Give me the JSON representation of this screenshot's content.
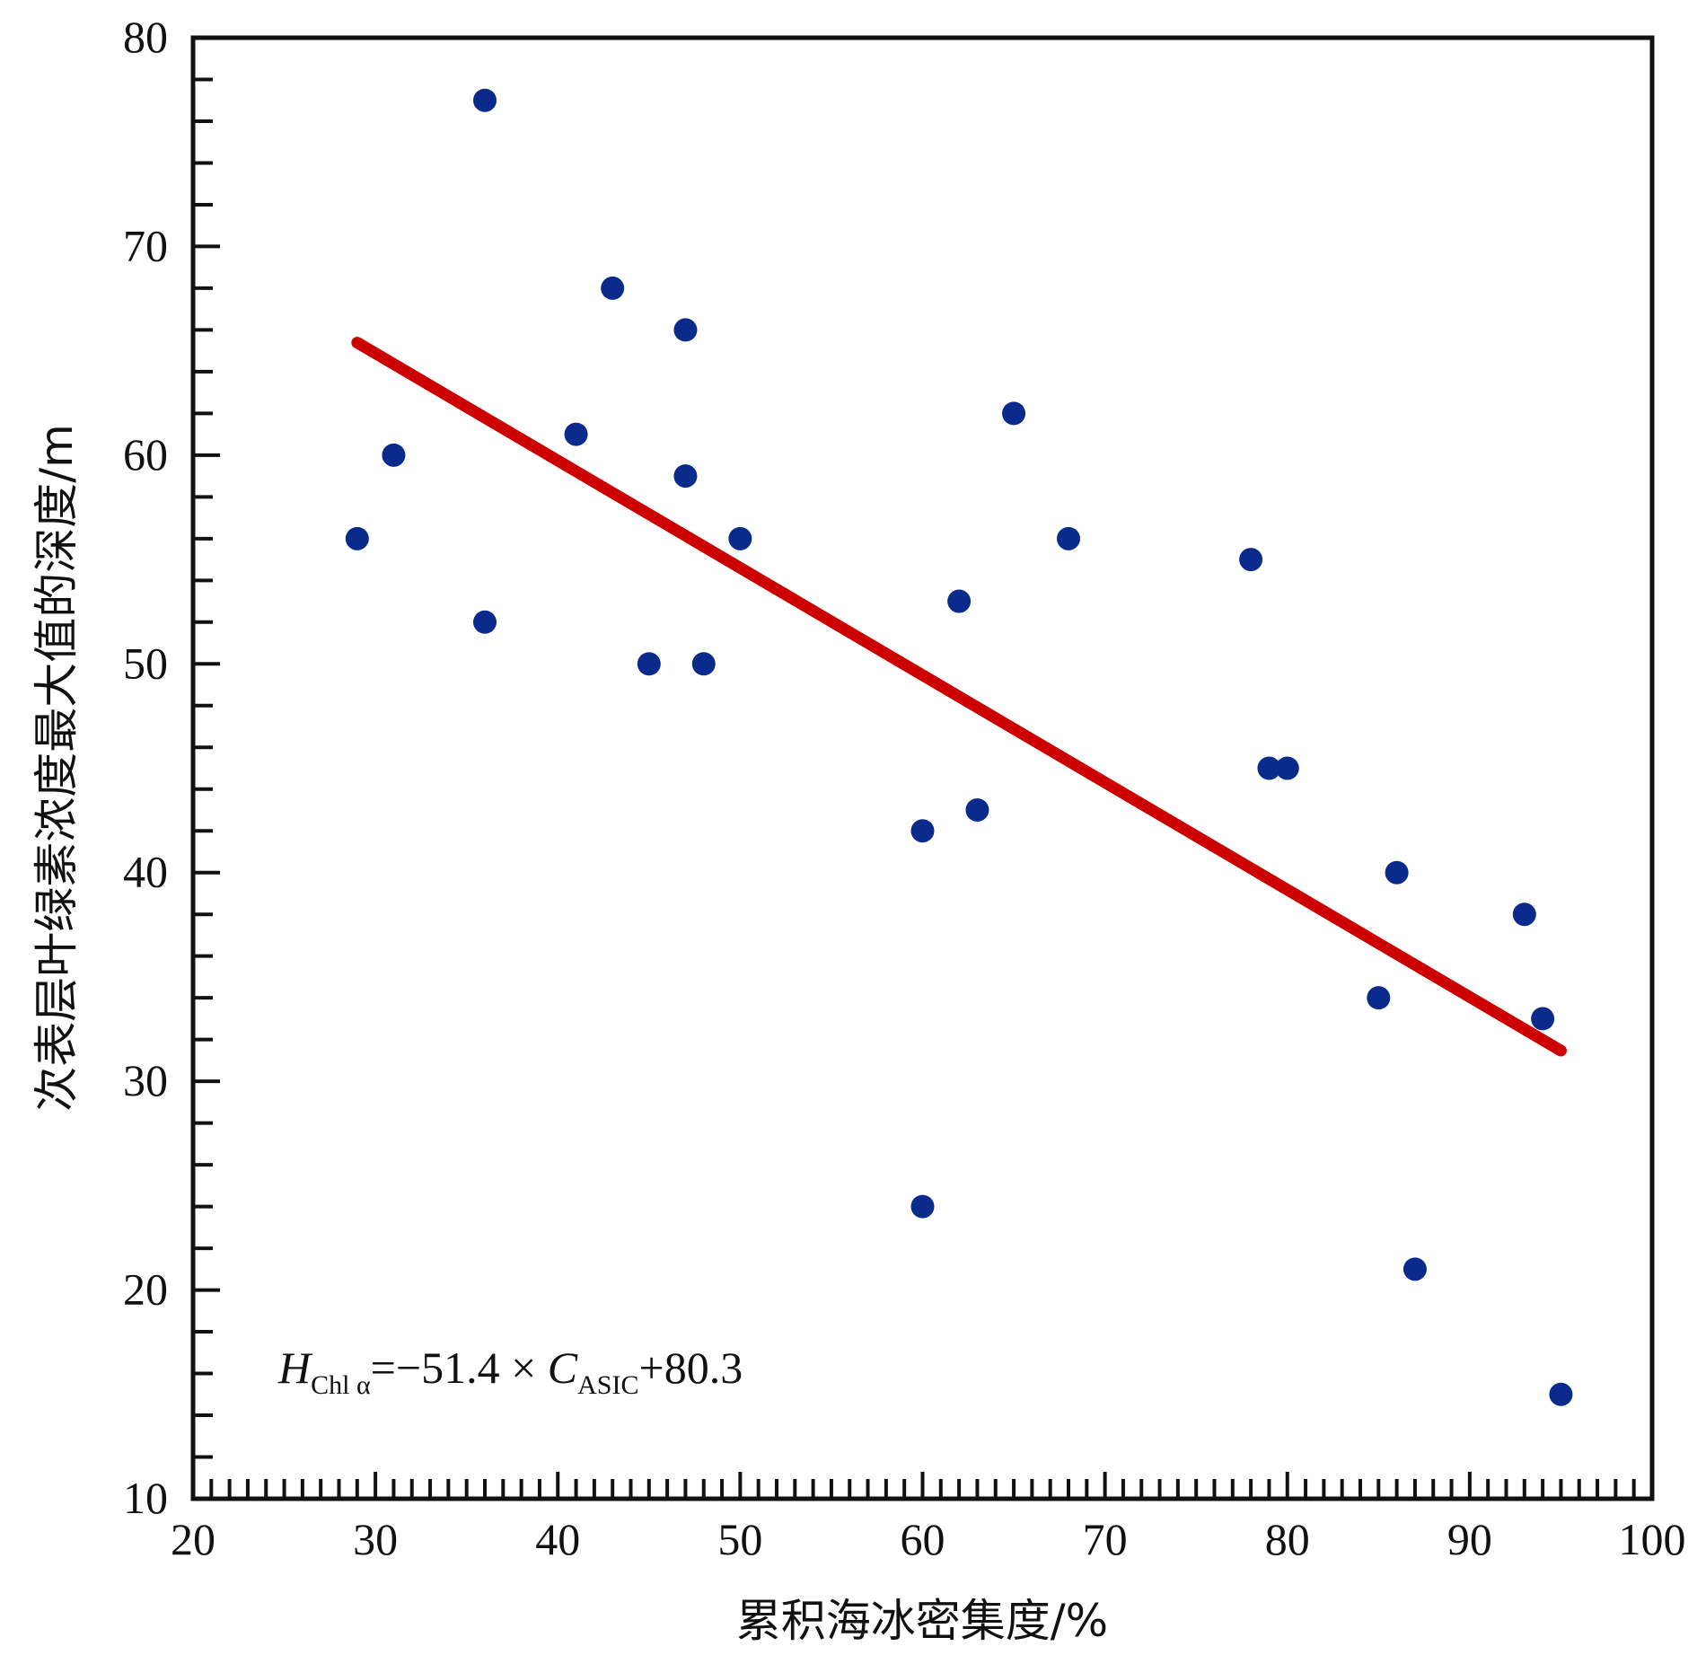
{
  "chart_data": {
    "type": "scatter",
    "xlabel": "累积海冰密集度/%",
    "ylabel": "次表层叶绿素浓度最大值的深度/m",
    "xlim": [
      20,
      100
    ],
    "ylim": [
      10,
      80
    ],
    "x_ticks": [
      "20",
      "30",
      "40",
      "50",
      "60",
      "70",
      "80",
      "90",
      "100"
    ],
    "y_ticks": [
      "10",
      "20",
      "30",
      "40",
      "50",
      "60",
      "70",
      "80"
    ],
    "grid": false,
    "points": [
      {
        "x": 29,
        "y": 56
      },
      {
        "x": 31,
        "y": 60
      },
      {
        "x": 36,
        "y": 77
      },
      {
        "x": 36,
        "y": 52
      },
      {
        "x": 41,
        "y": 61
      },
      {
        "x": 43,
        "y": 68
      },
      {
        "x": 45,
        "y": 50
      },
      {
        "x": 47,
        "y": 66
      },
      {
        "x": 47,
        "y": 59
      },
      {
        "x": 48,
        "y": 50
      },
      {
        "x": 50,
        "y": 56
      },
      {
        "x": 60,
        "y": 42
      },
      {
        "x": 60,
        "y": 24
      },
      {
        "x": 62,
        "y": 53
      },
      {
        "x": 63,
        "y": 43
      },
      {
        "x": 65,
        "y": 62
      },
      {
        "x": 68,
        "y": 56
      },
      {
        "x": 78,
        "y": 55
      },
      {
        "x": 79,
        "y": 45
      },
      {
        "x": 80,
        "y": 45
      },
      {
        "x": 85,
        "y": 34
      },
      {
        "x": 86,
        "y": 40
      },
      {
        "x": 87,
        "y": 21
      },
      {
        "x": 93,
        "y": 38
      },
      {
        "x": 94,
        "y": 33
      },
      {
        "x": 95,
        "y": 15
      }
    ],
    "fit_line": {
      "slope": -51.4,
      "intercept": 80.3,
      "x_range": [
        29,
        95
      ],
      "color": "#cc0000"
    },
    "point_color": "#0a2a8c",
    "annotation": {
      "H": "H",
      "H_sub": "Chl α",
      "middle": "=−51.4 × ",
      "C": "C",
      "C_sub": "ASIC",
      "tail": "+80.3"
    }
  }
}
